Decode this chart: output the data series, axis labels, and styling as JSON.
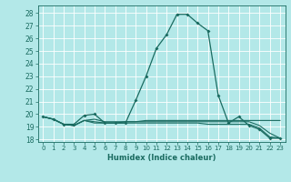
{
  "title": "",
  "xlabel": "Humidex (Indice chaleur)",
  "bg_color": "#b3e8e8",
  "grid_color": "#ffffff",
  "line_color": "#1a6b60",
  "xlim": [
    -0.5,
    23.5
  ],
  "ylim": [
    17.8,
    28.6
  ],
  "yticks": [
    18,
    19,
    20,
    21,
    22,
    23,
    24,
    25,
    26,
    27,
    28
  ],
  "xticks": [
    0,
    1,
    2,
    3,
    4,
    5,
    6,
    7,
    8,
    9,
    10,
    11,
    12,
    13,
    14,
    15,
    16,
    17,
    18,
    19,
    20,
    21,
    22,
    23
  ],
  "xtick_labels": [
    "0",
    "1",
    "2",
    "3",
    "4",
    "5",
    "6",
    "7",
    "8",
    "9",
    "10",
    "11",
    "12",
    "13",
    "14",
    "15",
    "16",
    "17",
    "18",
    "19",
    "20",
    "21",
    "22",
    "23"
  ],
  "series": [
    [
      19.8,
      19.6,
      19.2,
      19.2,
      19.9,
      20.0,
      19.3,
      19.3,
      19.3,
      21.1,
      23.0,
      25.2,
      26.3,
      27.9,
      27.9,
      27.2,
      26.6,
      21.5,
      19.3,
      19.8,
      19.1,
      18.8,
      18.1,
      18.1
    ],
    [
      19.8,
      19.6,
      19.2,
      19.1,
      19.5,
      19.6,
      19.4,
      19.4,
      19.4,
      19.4,
      19.5,
      19.5,
      19.5,
      19.5,
      19.5,
      19.5,
      19.5,
      19.5,
      19.5,
      19.5,
      19.5,
      19.5,
      19.5,
      19.5
    ],
    [
      19.8,
      19.6,
      19.2,
      19.1,
      19.5,
      19.3,
      19.3,
      19.3,
      19.3,
      19.3,
      19.3,
      19.3,
      19.3,
      19.3,
      19.3,
      19.3,
      19.2,
      19.2,
      19.2,
      19.2,
      19.2,
      18.9,
      18.2,
      18.1
    ],
    [
      19.8,
      19.6,
      19.2,
      19.1,
      19.5,
      19.4,
      19.3,
      19.3,
      19.4,
      19.4,
      19.4,
      19.4,
      19.4,
      19.4,
      19.4,
      19.4,
      19.4,
      19.4,
      19.4,
      19.4,
      19.4,
      19.1,
      18.5,
      18.1
    ]
  ]
}
